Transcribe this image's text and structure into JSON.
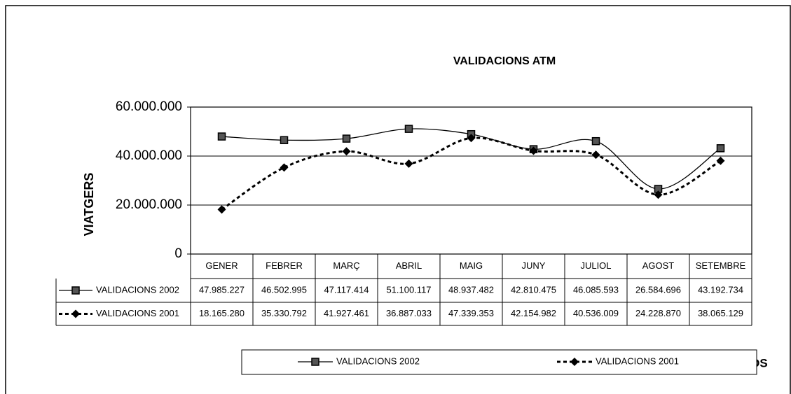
{
  "chart_data": {
    "type": "line",
    "title": "VALIDACIONS ATM",
    "y_label": "VIATGERS",
    "x_label": "MESOS",
    "categories": [
      "GENER",
      "FEBRER",
      "MARÇ",
      "ABRIL",
      "MAIG",
      "JUNY",
      "JULIOL",
      "AGOST",
      "SETEMBRE"
    ],
    "series": [
      {
        "name": "VALIDACIONS 2002",
        "color": "#000000",
        "marker": "square",
        "dash": "solid",
        "values": [
          47985227,
          46502995,
          47117414,
          51100117,
          48937482,
          42810475,
          46085593,
          26584696,
          43192734
        ],
        "value_labels": [
          "47.985.227",
          "46.502.995",
          "47.117.414",
          "51.100.117",
          "48.937.482",
          "42.810.475",
          "46.085.593",
          "26.584.696",
          "43.192.734"
        ]
      },
      {
        "name": "VALIDACIONS 2001",
        "color": "#000000",
        "marker": "diamond",
        "dash": "dotted",
        "values": [
          18165280,
          35330792,
          41927461,
          36887033,
          47339353,
          42154982,
          40536009,
          24228870,
          38065129
        ],
        "value_labels": [
          "18.165.280",
          "35.330.792",
          "41.927.461",
          "36.887.033",
          "47.339.353",
          "42.154.982",
          "40.536.009",
          "24.228.870",
          "38.065.129"
        ]
      }
    ],
    "ylim": [
      0,
      60000000
    ],
    "yticks": [
      0,
      {
        "value": 20000000,
        "label": "20.000.000"
      },
      {
        "value": 40000000,
        "label": "40.000.000"
      },
      {
        "value": 60000000,
        "label": "60.000.000"
      }
    ],
    "grid": true,
    "legend": "bottom"
  }
}
